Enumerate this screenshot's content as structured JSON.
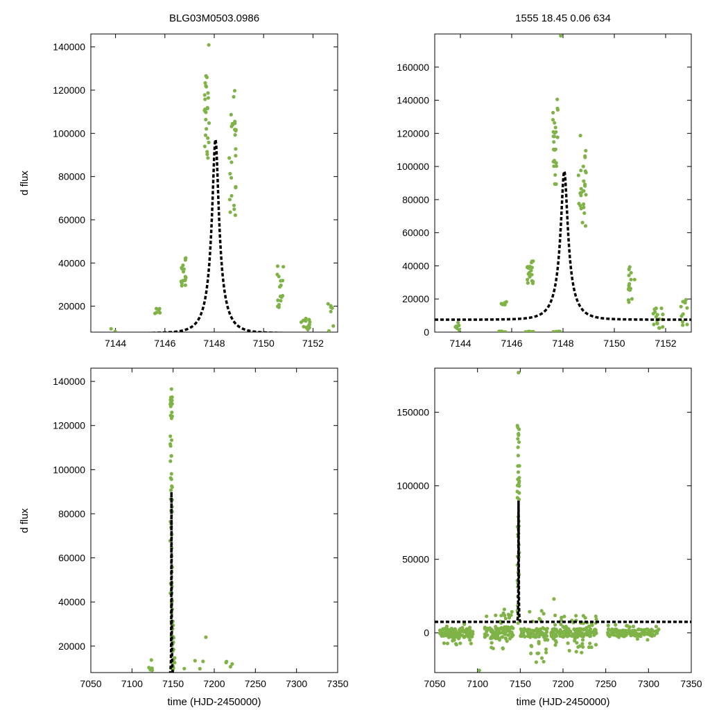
{
  "figure": {
    "left_title": "BLG03M0503.0986",
    "right_title": "1555  18.45  0.06  634",
    "ylabel": "d flux",
    "xlabel": "time (HJD-2450000)",
    "colors": {
      "points": "#7fb347",
      "model": "#000000",
      "frame": "#000000"
    }
  },
  "model": {
    "type": "paczynski",
    "t0": 7148.05,
    "u0": 0.2,
    "tE": 0.65,
    "fs": 22000,
    "base": 7500
  },
  "chart_data": [
    {
      "id": "top-left",
      "type": "scatter",
      "title": "BLG03M0503.0986",
      "xlabel": "",
      "ylabel": "d flux",
      "xlim": [
        7143,
        7153
      ],
      "ylim": [
        8000,
        146000
      ],
      "xticks": [
        7144,
        7146,
        7148,
        7150,
        7152
      ],
      "yticks": [
        20000,
        40000,
        60000,
        80000,
        100000,
        120000,
        140000
      ],
      "tick_labels_x": [
        "7144",
        "7146",
        "7148",
        "7150",
        "7152"
      ],
      "tick_labels_y": [
        "20000",
        "40000",
        "60000",
        "80000",
        "100000",
        "120000",
        "140000"
      ],
      "model_curve": true,
      "clusters": [
        {
          "x": [
            7143.8,
            7144.0
          ],
          "y": [
            8200,
            9800
          ],
          "n": 2
        },
        {
          "x": [
            7145.6,
            7145.8
          ],
          "y": [
            16500,
            19500
          ],
          "n": 6
        },
        {
          "x": [
            7146.6,
            7146.85
          ],
          "y": [
            29000,
            43000
          ],
          "n": 18
        },
        {
          "x": [
            7147.6,
            7147.8
          ],
          "y": [
            86000,
            142000
          ],
          "n": 26
        },
        {
          "x": [
            7148.6,
            7148.9
          ],
          "y": [
            62000,
            121000
          ],
          "n": 26
        },
        {
          "x": [
            7150.55,
            7150.8
          ],
          "y": [
            17000,
            40000
          ],
          "n": 16
        },
        {
          "x": [
            7151.5,
            7151.9
          ],
          "y": [
            9000,
            15000
          ],
          "n": 14
        },
        {
          "x": [
            7152.6,
            7152.85
          ],
          "y": [
            8500,
            21500
          ],
          "n": 7
        }
      ]
    },
    {
      "id": "top-right",
      "type": "scatter",
      "title": "1555  18.45  0.06  634",
      "xlabel": "",
      "ylabel": "",
      "xlim": [
        7143,
        7153
      ],
      "ylim": [
        0,
        180000
      ],
      "xticks": [
        7144,
        7146,
        7148,
        7150,
        7152
      ],
      "yticks": [
        0,
        20000,
        40000,
        60000,
        80000,
        100000,
        120000,
        140000,
        160000
      ],
      "tick_labels_x": [
        "7144",
        "7146",
        "7148",
        "7150",
        "7152"
      ],
      "tick_labels_y": [
        "0",
        "20000",
        "40000",
        "60000",
        "80000",
        "100000",
        "120000",
        "140000",
        "160000"
      ],
      "model_curve": true,
      "clusters": [
        {
          "x": [
            7143.8,
            7144.0
          ],
          "y": [
            0,
            8500
          ],
          "n": 6
        },
        {
          "x": [
            7145.5,
            7145.8
          ],
          "y": [
            0,
            500
          ],
          "n": 8
        },
        {
          "x": [
            7145.6,
            7145.8
          ],
          "y": [
            16500,
            19500
          ],
          "n": 6
        },
        {
          "x": [
            7146.5,
            7146.9
          ],
          "y": [
            0,
            500
          ],
          "n": 10
        },
        {
          "x": [
            7146.6,
            7146.85
          ],
          "y": [
            29000,
            43000
          ],
          "n": 18
        },
        {
          "x": [
            7147.6,
            7147.9
          ],
          "y": [
            0,
            500
          ],
          "n": 8
        },
        {
          "x": [
            7147.6,
            7147.8
          ],
          "y": [
            86000,
            142000
          ],
          "n": 26
        },
        {
          "x": [
            7147.9,
            7147.95
          ],
          "y": [
            178000,
            179500
          ],
          "n": 1
        },
        {
          "x": [
            7148.6,
            7148.9
          ],
          "y": [
            62000,
            121000
          ],
          "n": 26
        },
        {
          "x": [
            7150.55,
            7150.8
          ],
          "y": [
            17000,
            40000
          ],
          "n": 16
        },
        {
          "x": [
            7151.5,
            7151.9
          ],
          "y": [
            0,
            15000
          ],
          "n": 18
        },
        {
          "x": [
            7152.6,
            7152.85
          ],
          "y": [
            0,
            21500
          ],
          "n": 10
        }
      ]
    },
    {
      "id": "bottom-left",
      "type": "scatter",
      "title": "",
      "xlabel": "time (HJD-2450000)",
      "ylabel": "d flux",
      "xlim": [
        7050,
        7350
      ],
      "ylim": [
        8000,
        146000
      ],
      "xticks": [
        7050,
        7100,
        7150,
        7200,
        7250,
        7300,
        7350
      ],
      "yticks": [
        20000,
        40000,
        60000,
        80000,
        100000,
        120000,
        140000
      ],
      "tick_labels_x": [
        "7050",
        "7100",
        "7150",
        "7200",
        "7250",
        "7300",
        "7350"
      ],
      "tick_labels_y": [
        "20000",
        "40000",
        "60000",
        "80000",
        "100000",
        "120000",
        "140000"
      ],
      "model_curve": true,
      "clusters": [
        {
          "x": [
            7146.5,
            7149
          ],
          "y": [
            9000,
            142000
          ],
          "n": 60
        },
        {
          "x": [
            7149,
            7152
          ],
          "y": [
            9000,
            35000
          ],
          "n": 20
        },
        {
          "x": [
            7118,
            7126
          ],
          "y": [
            9000,
            15500
          ],
          "n": 5
        },
        {
          "x": [
            7160,
            7240
          ],
          "y": [
            9000,
            14000
          ],
          "n": 8
        },
        {
          "x": [
            7189,
            7190
          ],
          "y": [
            24000,
            24500
          ],
          "n": 1
        }
      ]
    },
    {
      "id": "bottom-right",
      "type": "scatter",
      "title": "",
      "xlabel": "time (HJD-2450000)",
      "ylabel": "",
      "xlim": [
        7050,
        7350
      ],
      "ylim": [
        -27000,
        180000
      ],
      "xticks": [
        7050,
        7100,
        7150,
        7200,
        7250,
        7300,
        7350
      ],
      "yticks": [
        0,
        50000,
        100000,
        150000
      ],
      "tick_labels_x": [
        "7050",
        "7100",
        "7150",
        "7200",
        "7250",
        "7300",
        "7350"
      ],
      "tick_labels_y": [
        "0",
        "50000",
        "100000",
        "150000"
      ],
      "model_curve": true,
      "clusters": [
        {
          "x": [
            7056,
            7095
          ],
          "y": [
            -3000,
            3000
          ],
          "n": 110
        },
        {
          "x": [
            7056,
            7095
          ],
          "y": [
            -8000,
            8000
          ],
          "n": 25
        },
        {
          "x": [
            7108,
            7142
          ],
          "y": [
            -4000,
            4000
          ],
          "n": 80
        },
        {
          "x": [
            7108,
            7142
          ],
          "y": [
            -12000,
            16000
          ],
          "n": 30
        },
        {
          "x": [
            7146.5,
            7149
          ],
          "y": [
            5000,
            142000
          ],
          "n": 50
        },
        {
          "x": [
            7147.5,
            7148
          ],
          "y": [
            175000,
            178000
          ],
          "n": 1
        },
        {
          "x": [
            7150,
            7182
          ],
          "y": [
            -3000,
            3000
          ],
          "n": 60
        },
        {
          "x": [
            7160,
            7182
          ],
          "y": [
            -20000,
            15000
          ],
          "n": 30
        },
        {
          "x": [
            7186,
            7240
          ],
          "y": [
            -3000,
            3000
          ],
          "n": 110
        },
        {
          "x": [
            7186,
            7240
          ],
          "y": [
            -14000,
            12000
          ],
          "n": 60
        },
        {
          "x": [
            7189,
            7190
          ],
          "y": [
            23000,
            24500
          ],
          "n": 1
        },
        {
          "x": [
            7102,
            7104
          ],
          "y": [
            -26000,
            -25000
          ],
          "n": 1
        },
        {
          "x": [
            7252,
            7313
          ],
          "y": [
            -2500,
            2500
          ],
          "n": 110
        },
        {
          "x": [
            7252,
            7313
          ],
          "y": [
            -6000,
            6000
          ],
          "n": 18
        }
      ]
    }
  ]
}
